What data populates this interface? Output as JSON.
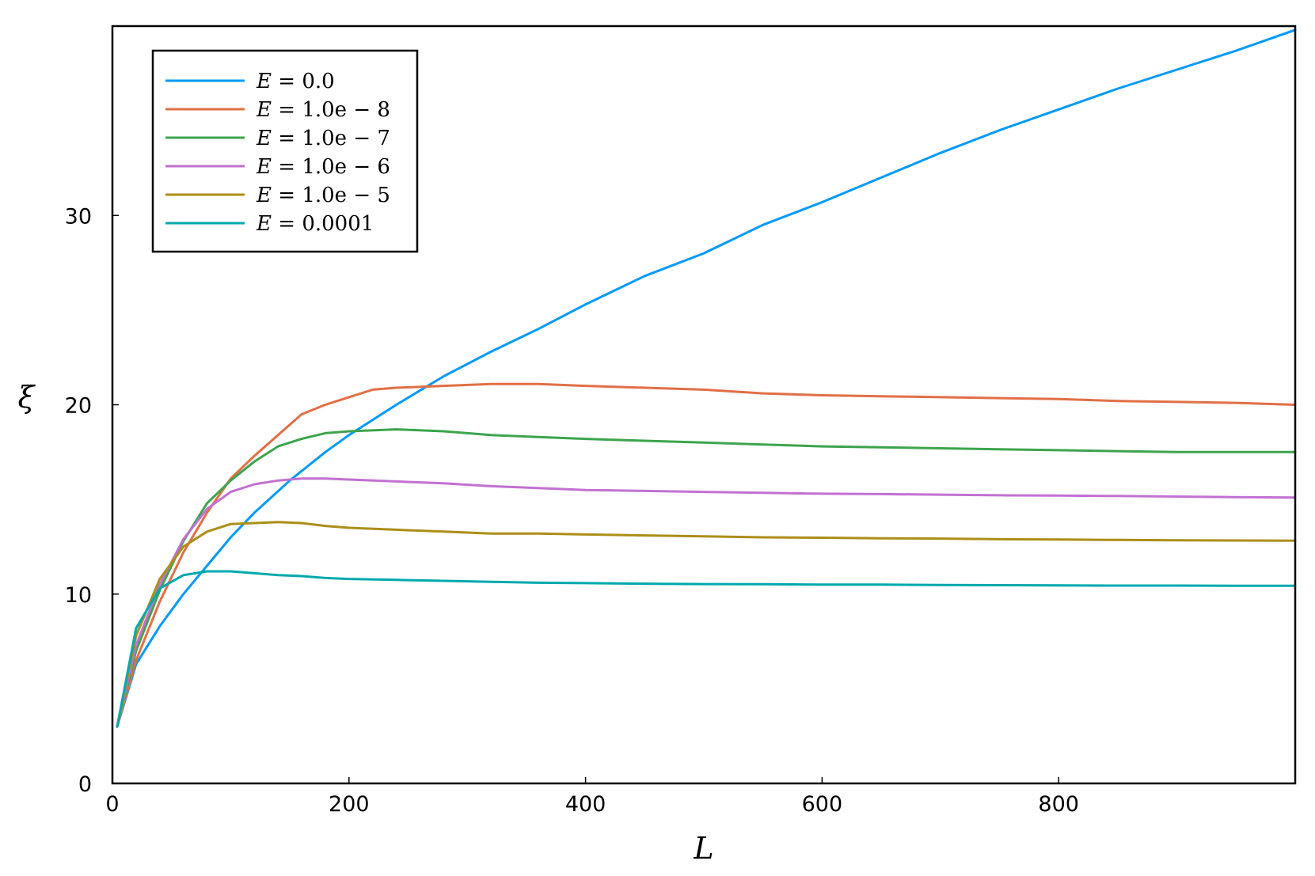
{
  "chart_data": {
    "type": "line",
    "title": "",
    "xlabel": "L",
    "ylabel": "ξ",
    "xlim": [
      0,
      1000
    ],
    "ylim": [
      0,
      40
    ],
    "xticks": [
      0,
      200,
      400,
      600,
      800
    ],
    "yticks": [
      0,
      10,
      20,
      30
    ],
    "grid": false,
    "legend": "top-left",
    "series": [
      {
        "name": "E = 0.0",
        "color": "#009af9",
        "x": [
          4,
          20,
          40,
          60,
          80,
          100,
          120,
          150,
          180,
          200,
          240,
          280,
          320,
          360,
          400,
          450,
          500,
          550,
          600,
          650,
          700,
          750,
          800,
          850,
          900,
          950,
          1000
        ],
        "y": [
          3.0,
          6.3,
          8.3,
          10.0,
          11.5,
          13.0,
          14.3,
          16.0,
          17.5,
          18.4,
          20.0,
          21.5,
          22.8,
          24.0,
          25.3,
          26.8,
          28.0,
          29.5,
          30.7,
          32.0,
          33.3,
          34.5,
          35.6,
          36.7,
          37.7,
          38.7,
          39.8
        ]
      },
      {
        "name": "E = 1.0e − 8",
        "color": "#e26f46",
        "x": [
          4,
          20,
          40,
          60,
          80,
          100,
          120,
          140,
          160,
          180,
          200,
          220,
          240,
          280,
          320,
          360,
          400,
          450,
          500,
          550,
          600,
          650,
          700,
          750,
          800,
          850,
          900,
          950,
          1000
        ],
        "y": [
          3.0,
          6.5,
          9.6,
          12.2,
          14.3,
          16.1,
          17.3,
          18.4,
          19.5,
          20.0,
          20.4,
          20.8,
          20.9,
          21.0,
          21.1,
          21.1,
          21.0,
          20.9,
          20.8,
          20.6,
          20.5,
          20.45,
          20.4,
          20.35,
          20.3,
          20.2,
          20.15,
          20.1,
          20.0
        ]
      },
      {
        "name": "E = 1.0e − 7",
        "color": "#3da44d",
        "x": [
          4,
          20,
          40,
          60,
          80,
          100,
          120,
          140,
          160,
          180,
          200,
          240,
          280,
          320,
          360,
          400,
          450,
          500,
          550,
          600,
          650,
          700,
          750,
          800,
          850,
          900,
          950,
          1000
        ],
        "y": [
          3.0,
          7.0,
          10.2,
          12.8,
          14.8,
          16.0,
          17.0,
          17.8,
          18.2,
          18.5,
          18.6,
          18.7,
          18.6,
          18.4,
          18.3,
          18.2,
          18.1,
          18.0,
          17.9,
          17.8,
          17.75,
          17.7,
          17.65,
          17.6,
          17.55,
          17.5,
          17.5,
          17.5
        ]
      },
      {
        "name": "E = 1.0e − 6",
        "color": "#c271d2",
        "x": [
          4,
          20,
          40,
          60,
          80,
          100,
          120,
          140,
          160,
          180,
          200,
          240,
          280,
          320,
          360,
          400,
          450,
          500,
          550,
          600,
          650,
          700,
          750,
          800,
          850,
          900,
          950,
          1000
        ],
        "y": [
          3.0,
          7.3,
          10.5,
          12.9,
          14.5,
          15.4,
          15.8,
          16.0,
          16.1,
          16.1,
          16.05,
          15.95,
          15.85,
          15.7,
          15.6,
          15.5,
          15.45,
          15.4,
          15.35,
          15.3,
          15.28,
          15.25,
          15.22,
          15.2,
          15.18,
          15.15,
          15.12,
          15.1
        ]
      },
      {
        "name": "E = 1.0e − 5",
        "color": "#ac8e18",
        "x": [
          4,
          20,
          40,
          60,
          80,
          100,
          120,
          140,
          160,
          180,
          200,
          240,
          280,
          320,
          360,
          400,
          450,
          500,
          550,
          600,
          650,
          700,
          750,
          800,
          850,
          900,
          950,
          1000
        ],
        "y": [
          3.0,
          7.8,
          10.8,
          12.5,
          13.3,
          13.7,
          13.75,
          13.8,
          13.75,
          13.6,
          13.5,
          13.4,
          13.3,
          13.2,
          13.2,
          13.15,
          13.1,
          13.05,
          13.0,
          12.98,
          12.95,
          12.93,
          12.9,
          12.88,
          12.86,
          12.84,
          12.83,
          12.82
        ]
      },
      {
        "name": "E = 0.0001",
        "color": "#00a9ad",
        "x": [
          4,
          20,
          40,
          60,
          80,
          100,
          120,
          140,
          160,
          180,
          200,
          240,
          280,
          320,
          360,
          400,
          450,
          500,
          550,
          600,
          650,
          700,
          750,
          800,
          850,
          900,
          950,
          1000
        ],
        "y": [
          3.0,
          8.2,
          10.3,
          11.0,
          11.2,
          11.2,
          11.1,
          11.0,
          10.95,
          10.85,
          10.8,
          10.75,
          10.7,
          10.65,
          10.6,
          10.58,
          10.55,
          10.53,
          10.52,
          10.5,
          10.5,
          10.48,
          10.47,
          10.46,
          10.45,
          10.45,
          10.44,
          10.44
        ]
      }
    ]
  },
  "legend_labels": [
    {
      "lhs": "E",
      "rhs": "0.0"
    },
    {
      "lhs": "E",
      "rhs": "1.0e − 8"
    },
    {
      "lhs": "E",
      "rhs": "1.0e − 7"
    },
    {
      "lhs": "E",
      "rhs": "1.0e − 6"
    },
    {
      "lhs": "E",
      "rhs": "1.0e − 5"
    },
    {
      "lhs": "E",
      "rhs": "0.0001"
    }
  ]
}
